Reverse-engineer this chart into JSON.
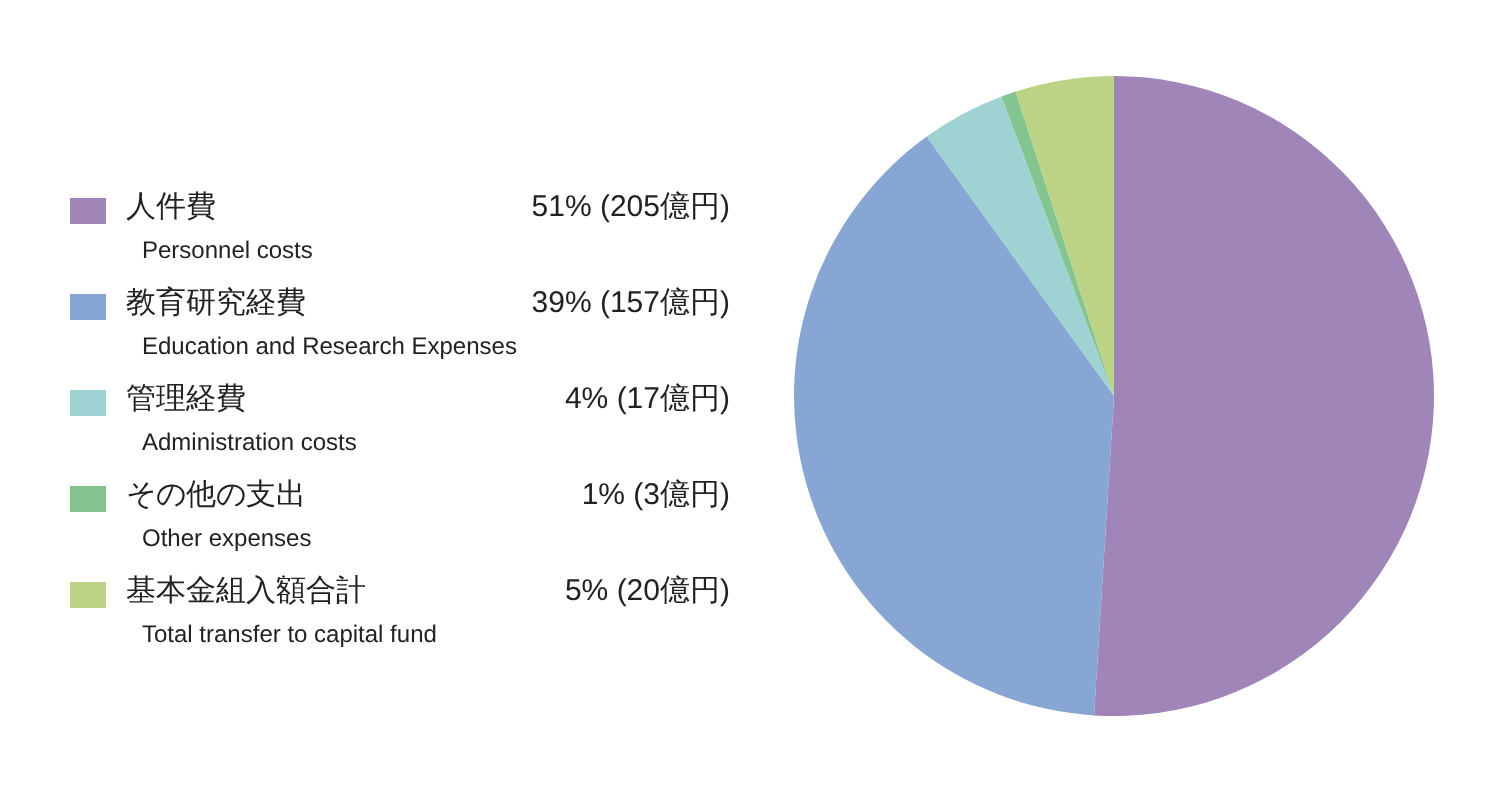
{
  "chart_data": {
    "type": "pie",
    "categories": [
      "人件費\nPersonnel costs",
      "教育研究経費\nEducation and Research Expenses",
      "管理経費\nAdministration costs",
      "その他の支出\nOther expenses",
      "基本金組入額合計\nTotal transfer to capital fund"
    ],
    "values": [
      205,
      157,
      17,
      3,
      20
    ],
    "value_labels": [
      "51% (205億円)",
      "39% (157億円)",
      "4% (17億円)",
      "1% (3億円)",
      "5% (20億円)"
    ],
    "colors": [
      "#a086b8",
      "#87a6d4",
      "#9fd3d3",
      "#84c490",
      "#bcd385"
    ],
    "legend": "left"
  }
}
